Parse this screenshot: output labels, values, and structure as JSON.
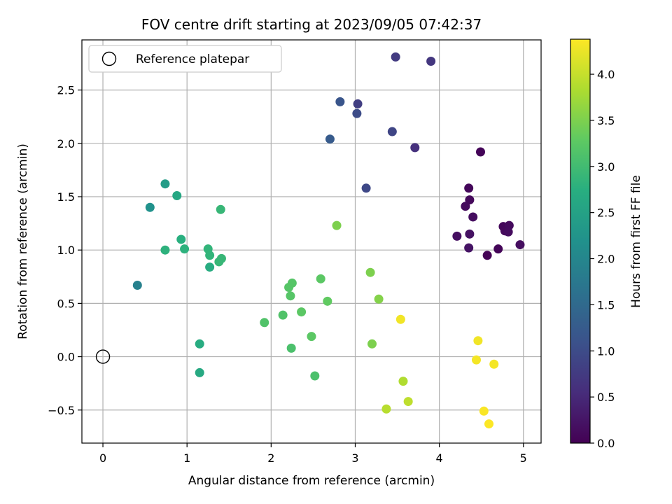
{
  "chart_data": {
    "type": "scatter",
    "title": "FOV centre drift starting at 2023/09/05 07:42:37",
    "xlabel": "Angular distance from reference (arcmin)",
    "ylabel": "Rotation from reference (arcmin)",
    "xlim": [
      -0.25,
      5.21
    ],
    "ylim": [
      -0.81,
      2.97
    ],
    "xticks": [
      0,
      1,
      2,
      3,
      4,
      5
    ],
    "xtick_labels": [
      "0",
      "1",
      "2",
      "3",
      "4",
      "5"
    ],
    "yticks": [
      -0.5,
      0.0,
      0.5,
      1.0,
      1.5,
      2.0,
      2.5
    ],
    "ytick_labels": [
      "−0.5",
      "0.0",
      "0.5",
      "1.0",
      "1.5",
      "2.0",
      "2.5"
    ],
    "grid": true,
    "legend": {
      "placement": "top-left",
      "entries": [
        "Reference platepar"
      ]
    },
    "reference_point": {
      "x": 0.0,
      "y": 0.0,
      "label": "Reference platepar"
    },
    "colorbar": {
      "label": "Hours from first FF file",
      "colormap": "viridis",
      "range": [
        0.0,
        4.38
      ],
      "ticks": [
        0.0,
        0.5,
        1.0,
        1.5,
        2.0,
        2.5,
        3.0,
        3.5,
        4.0
      ],
      "tick_labels": [
        "0.0",
        "0.5",
        "1.0",
        "1.5",
        "2.0",
        "2.5",
        "3.0",
        "3.5",
        "4.0"
      ]
    },
    "points": [
      {
        "x": 4.49,
        "y": 1.92,
        "hours": 0.05
      },
      {
        "x": 4.35,
        "y": 1.58,
        "hours": 0.08
      },
      {
        "x": 4.36,
        "y": 1.47,
        "hours": 0.1
      },
      {
        "x": 4.31,
        "y": 1.41,
        "hours": 0.12
      },
      {
        "x": 4.4,
        "y": 1.31,
        "hours": 0.15
      },
      {
        "x": 4.21,
        "y": 1.13,
        "hours": 0.18
      },
      {
        "x": 4.36,
        "y": 1.15,
        "hours": 0.2
      },
      {
        "x": 4.35,
        "y": 1.02,
        "hours": 0.22
      },
      {
        "x": 4.57,
        "y": 0.95,
        "hours": 0.02
      },
      {
        "x": 4.7,
        "y": 1.01,
        "hours": 0.05
      },
      {
        "x": 4.76,
        "y": 1.22,
        "hours": 0.08
      },
      {
        "x": 4.78,
        "y": 1.18,
        "hours": 0.1
      },
      {
        "x": 4.83,
        "y": 1.23,
        "hours": 0.12
      },
      {
        "x": 4.82,
        "y": 1.17,
        "hours": 0.14
      },
      {
        "x": 4.96,
        "y": 1.05,
        "hours": 0.16
      },
      {
        "x": 3.9,
        "y": 2.77,
        "hours": 0.7
      },
      {
        "x": 3.48,
        "y": 2.81,
        "hours": 0.75
      },
      {
        "x": 3.03,
        "y": 2.37,
        "hours": 0.8
      },
      {
        "x": 3.71,
        "y": 1.96,
        "hours": 0.6
      },
      {
        "x": 3.44,
        "y": 2.11,
        "hours": 0.9
      },
      {
        "x": 3.02,
        "y": 2.28,
        "hours": 1.0
      },
      {
        "x": 2.82,
        "y": 2.39,
        "hours": 1.15
      },
      {
        "x": 2.7,
        "y": 2.04,
        "hours": 1.25
      },
      {
        "x": 3.13,
        "y": 1.58,
        "hours": 0.95
      },
      {
        "x": 0.41,
        "y": 0.67,
        "hours": 1.9
      },
      {
        "x": 0.56,
        "y": 1.4,
        "hours": 2.2
      },
      {
        "x": 0.74,
        "y": 1.62,
        "hours": 2.4
      },
      {
        "x": 0.88,
        "y": 1.51,
        "hours": 2.6
      },
      {
        "x": 0.93,
        "y": 1.1,
        "hours": 2.75
      },
      {
        "x": 0.74,
        "y": 1.0,
        "hours": 2.8
      },
      {
        "x": 0.97,
        "y": 1.01,
        "hours": 2.8
      },
      {
        "x": 1.25,
        "y": 1.01,
        "hours": 2.85
      },
      {
        "x": 1.27,
        "y": 0.95,
        "hours": 2.85
      },
      {
        "x": 1.27,
        "y": 0.84,
        "hours": 2.7
      },
      {
        "x": 1.38,
        "y": 0.89,
        "hours": 2.9
      },
      {
        "x": 1.41,
        "y": 0.92,
        "hours": 2.9
      },
      {
        "x": 1.4,
        "y": 1.38,
        "hours": 2.9
      },
      {
        "x": 1.15,
        "y": 0.12,
        "hours": 2.7
      },
      {
        "x": 1.15,
        "y": -0.15,
        "hours": 2.65
      },
      {
        "x": 1.92,
        "y": 0.32,
        "hours": 3.15
      },
      {
        "x": 2.14,
        "y": 0.39,
        "hours": 3.15
      },
      {
        "x": 2.21,
        "y": 0.65,
        "hours": 3.2
      },
      {
        "x": 2.25,
        "y": 0.69,
        "hours": 3.2
      },
      {
        "x": 2.23,
        "y": 0.57,
        "hours": 3.2
      },
      {
        "x": 2.36,
        "y": 0.42,
        "hours": 3.25
      },
      {
        "x": 2.59,
        "y": 0.73,
        "hours": 3.25
      },
      {
        "x": 2.67,
        "y": 0.52,
        "hours": 3.3
      },
      {
        "x": 2.78,
        "y": 1.23,
        "hours": 3.5
      },
      {
        "x": 2.48,
        "y": 0.19,
        "hours": 3.25
      },
      {
        "x": 2.24,
        "y": 0.08,
        "hours": 3.1
      },
      {
        "x": 2.52,
        "y": -0.18,
        "hours": 3.1
      },
      {
        "x": 3.18,
        "y": 0.79,
        "hours": 3.5
      },
      {
        "x": 3.28,
        "y": 0.54,
        "hours": 3.55
      },
      {
        "x": 3.2,
        "y": 0.12,
        "hours": 3.5
      },
      {
        "x": 3.54,
        "y": 0.35,
        "hours": 4.3
      },
      {
        "x": 3.57,
        "y": -0.23,
        "hours": 3.85
      },
      {
        "x": 3.63,
        "y": -0.42,
        "hours": 3.95
      },
      {
        "x": 3.37,
        "y": -0.49,
        "hours": 3.9
      },
      {
        "x": 4.46,
        "y": 0.15,
        "hours": 4.3
      },
      {
        "x": 4.44,
        "y": -0.03,
        "hours": 4.32
      },
      {
        "x": 4.65,
        "y": -0.07,
        "hours": 4.32
      },
      {
        "x": 4.53,
        "y": -0.51,
        "hours": 4.35
      },
      {
        "x": 4.59,
        "y": -0.63,
        "hours": 4.37
      }
    ]
  }
}
